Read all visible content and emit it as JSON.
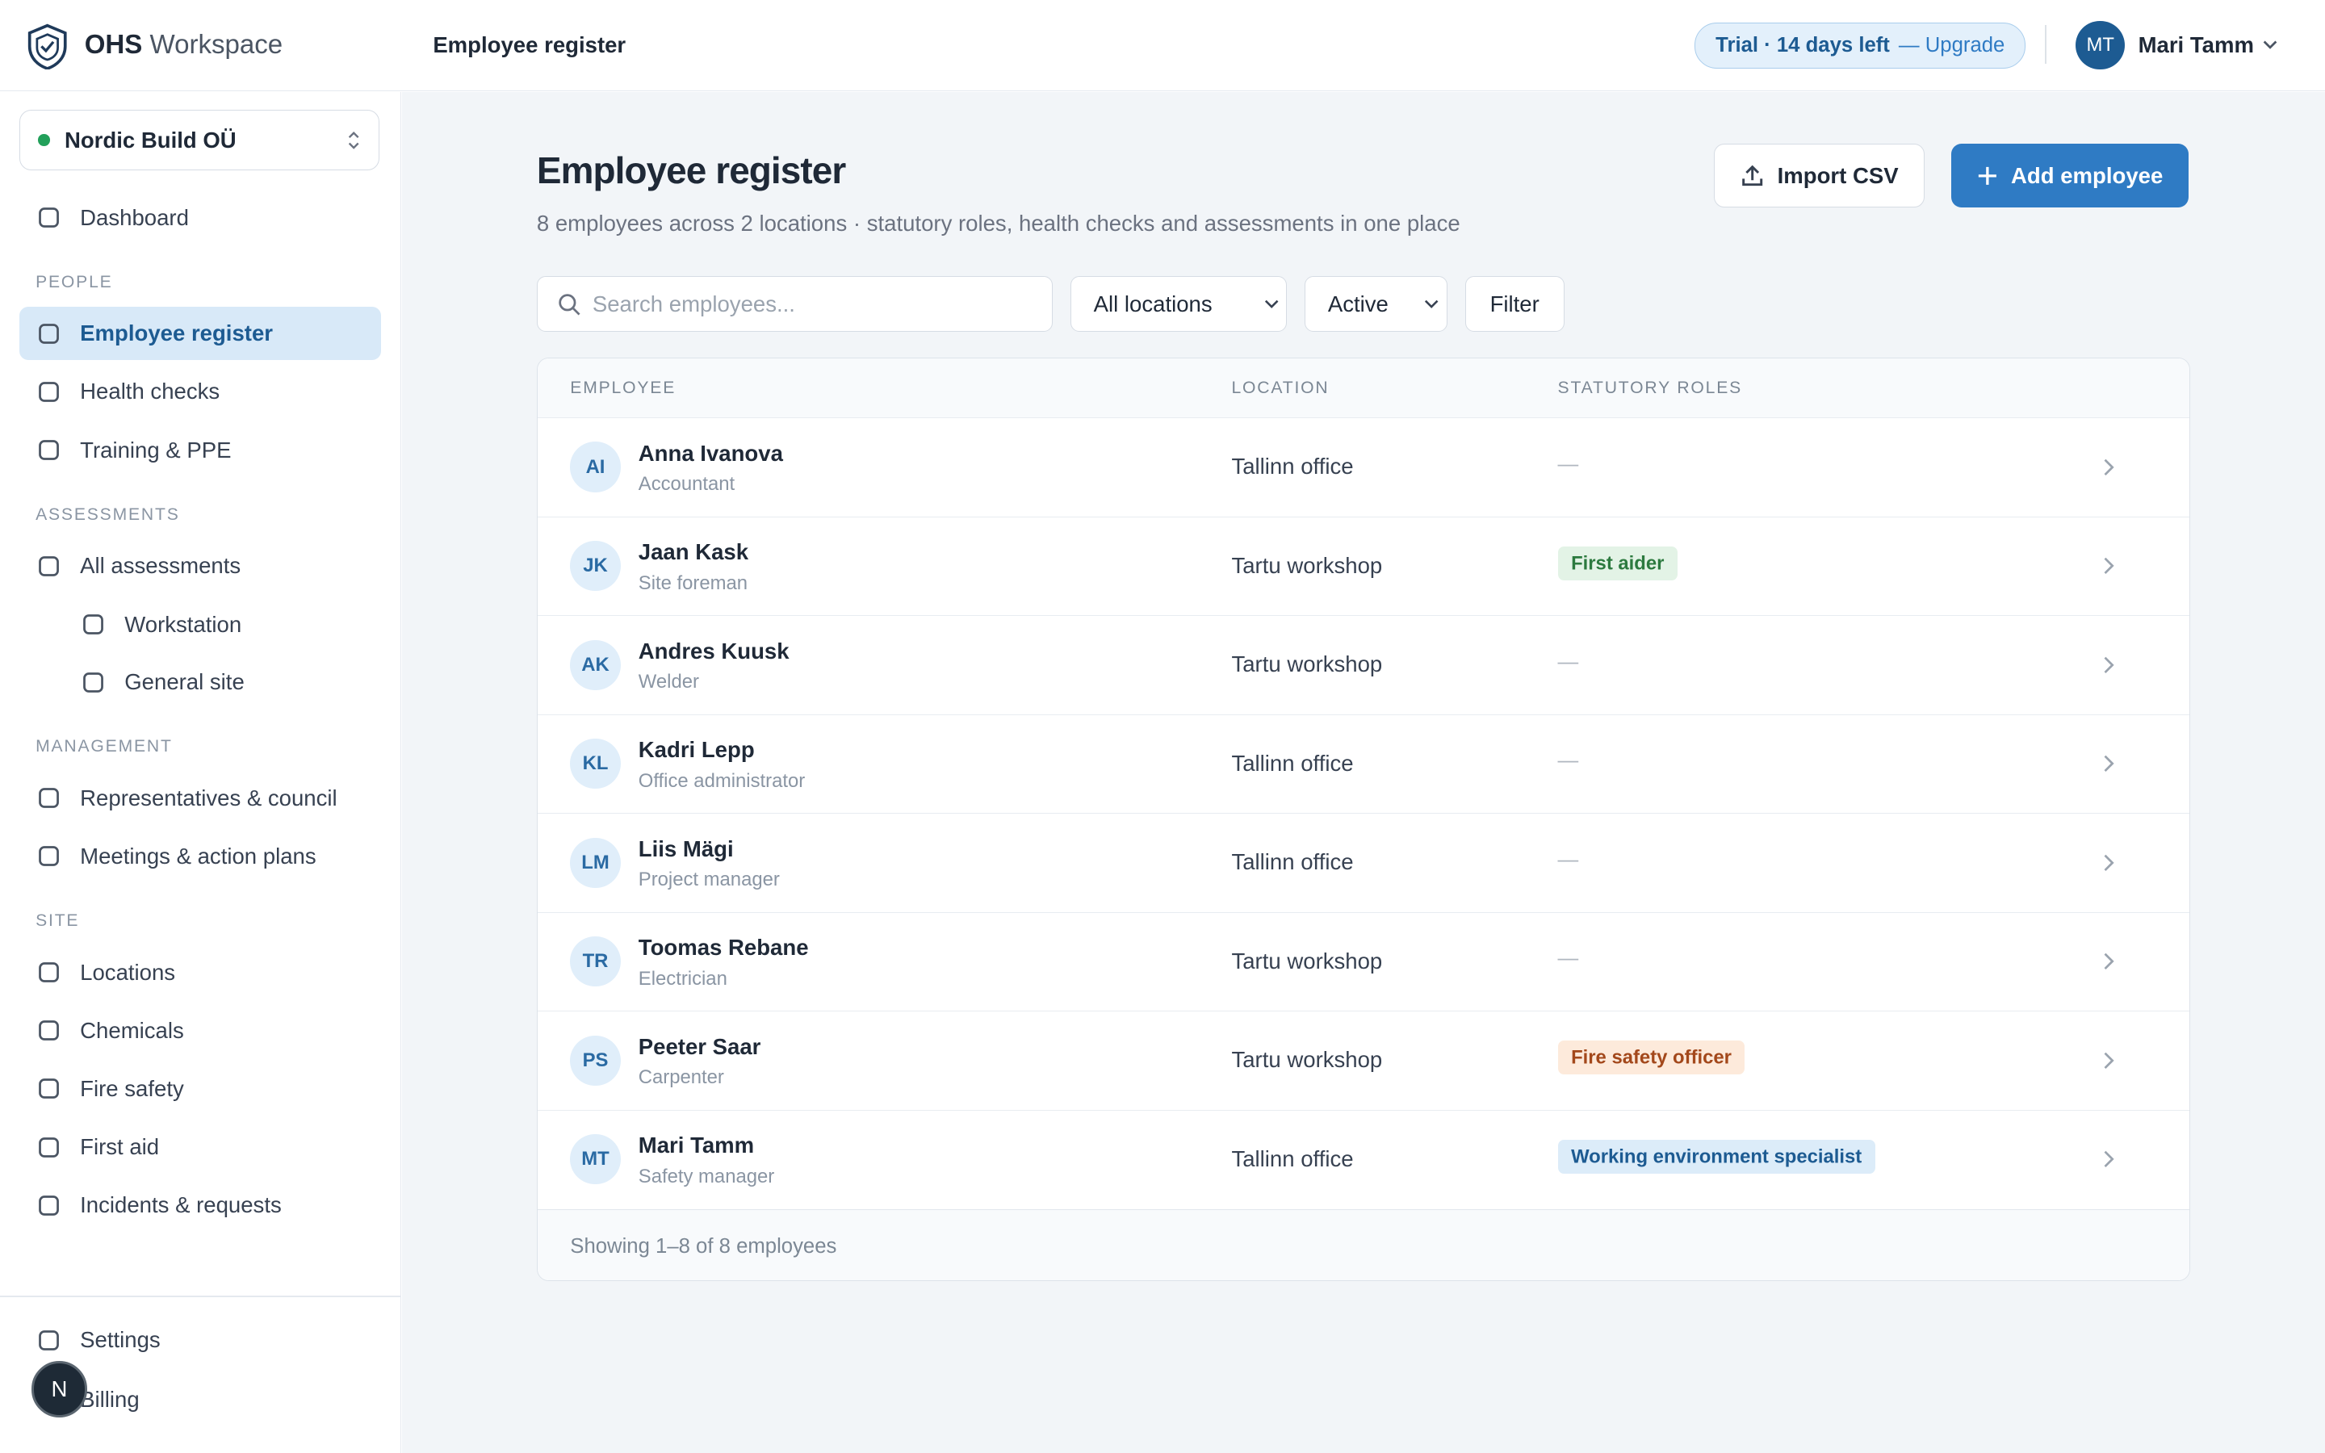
{
  "header": {
    "brand_bold": "OHS",
    "brand_light": "Workspace",
    "page_title": "Employee register",
    "trial": "Trial · 14 days left",
    "upgrade": "— Upgrade",
    "user_initials": "MT",
    "user_name": "Mari Tamm"
  },
  "sidebar": {
    "org": "Nordic Build OÜ",
    "dashboard": "Dashboard",
    "sections": [
      {
        "label": "PEOPLE",
        "items": [
          "Employee register",
          "Health checks",
          "Training & PPE"
        ]
      },
      {
        "label": "ASSESSMENTS",
        "items": [
          "All assessments"
        ],
        "subitems": [
          "Workstation",
          "General site"
        ]
      },
      {
        "label": "MANAGEMENT",
        "items": [
          "Representatives & council",
          "Meetings & action plans"
        ]
      },
      {
        "label": "SITE",
        "items": [
          "Locations",
          "Chemicals",
          "Fire safety",
          "First aid",
          "Incidents & requests"
        ]
      }
    ],
    "footer": [
      "Settings",
      "Billing"
    ],
    "badge": "N"
  },
  "main": {
    "title": "Employee register",
    "subtitle": "8 employees across 2 locations · statutory roles, health checks and assessments in one place",
    "import": "Import CSV",
    "add": "Add employee",
    "search": "Search employees...",
    "location_filter": "All locations",
    "status_filter": "Active",
    "filter": "Filter",
    "table": {
      "headers": [
        "EMPLOYEE",
        "LOCATION",
        "STATUTORY ROLES"
      ],
      "rows": [
        {
          "initials": "AI",
          "name": "Anna Ivanova",
          "role": "Accountant",
          "location": "Tallinn office",
          "statutory": "—"
        },
        {
          "initials": "JK",
          "name": "Jaan Kask",
          "role": "Site foreman",
          "location": "Tartu workshop",
          "statutory": "First aider",
          "tag_color": "#e3f3e6"
        },
        {
          "initials": "AK",
          "name": "Andres Kuusk",
          "role": "Welder",
          "location": "Tartu workshop",
          "statutory": "—"
        },
        {
          "initials": "KL",
          "name": "Kadri Lepp",
          "role": "Office administrator",
          "location": "Tallinn office",
          "statutory": "—"
        },
        {
          "initials": "LM",
          "name": "Liis Mägi",
          "role": "Project manager",
          "location": "Tallinn office",
          "statutory": "—"
        },
        {
          "initials": "TR",
          "name": "Toomas Rebane",
          "role": "Electrician",
          "location": "Tartu workshop",
          "statutory": "—"
        },
        {
          "initials": "PS",
          "name": "Peeter Saar",
          "role": "Carpenter",
          "location": "Tartu workshop",
          "statutory": "Fire safety officer",
          "tag_color": "#fdeadb"
        },
        {
          "initials": "MT",
          "name": "Mari Tamm",
          "role": "Safety manager",
          "location": "Tallinn office",
          "statutory": "Working environment specialist",
          "tag_color": "#dcecf9"
        }
      ],
      "footer": "Showing 1–8 of 8 employees"
    }
  }
}
